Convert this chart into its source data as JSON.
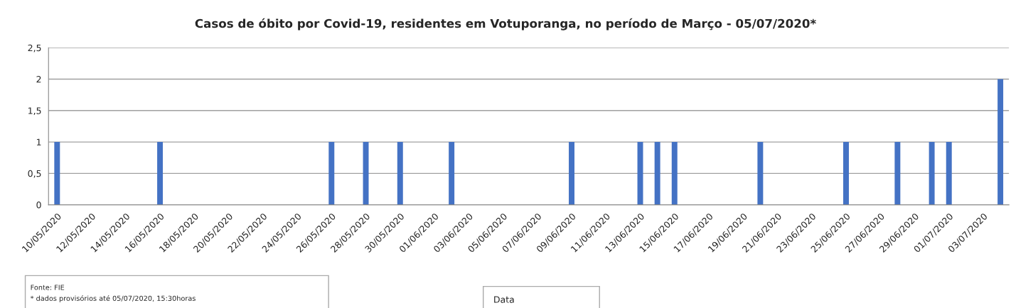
{
  "chart_data": {
    "type": "bar",
    "title": "Casos de óbito por Covid-19, residentes em Votuporanga, no período de Março - 05/07/2020*",
    "categories": [
      "10/05/2020",
      null,
      "12/05/2020",
      null,
      "14/05/2020",
      null,
      "16/05/2020",
      null,
      "18/05/2020",
      null,
      "20/05/2020",
      null,
      "22/05/2020",
      null,
      "24/05/2020",
      null,
      "26/05/2020",
      null,
      "28/05/2020",
      null,
      "30/05/2020",
      null,
      "01/06/2020",
      null,
      "03/06/2020",
      null,
      "05/06/2020",
      null,
      "07/06/2020",
      null,
      "09/06/2020",
      null,
      "11/06/2020",
      null,
      "13/06/2020",
      null,
      "15/06/2020",
      null,
      "17/06/2020",
      null,
      "19/06/2020",
      null,
      "21/06/2020",
      null,
      "23/06/2020",
      null,
      "25/06/2020",
      null,
      "27/06/2020",
      null,
      "29/06/2020",
      null,
      "01/07/2020",
      null,
      "03/07/2020",
      null
    ],
    "values": [
      1,
      0,
      0,
      0,
      0,
      0,
      1,
      0,
      0,
      0,
      0,
      0,
      0,
      0,
      0,
      0,
      1,
      0,
      1,
      0,
      1,
      0,
      0,
      1,
      0,
      0,
      0,
      0,
      0,
      0,
      1,
      0,
      0,
      0,
      1,
      1,
      1,
      0,
      0,
      0,
      0,
      1,
      0,
      0,
      0,
      0,
      1,
      0,
      0,
      1,
      0,
      1,
      1,
      0,
      0,
      2
    ],
    "color": "#4472c4",
    "ylim": [
      0,
      2.5
    ],
    "yticks": [
      0,
      {
        "value": 0.5,
        "label": "0,5"
      },
      1,
      {
        "value": 1.5,
        "label": "1,5"
      },
      2,
      {
        "value": 2.5,
        "label": "2,5"
      }
    ],
    "grid": "y",
    "annotations": [
      "Fonte: FIE",
      "* dados provisórios até 05/07/2020, 15:30horas",
      "Data"
    ]
  }
}
